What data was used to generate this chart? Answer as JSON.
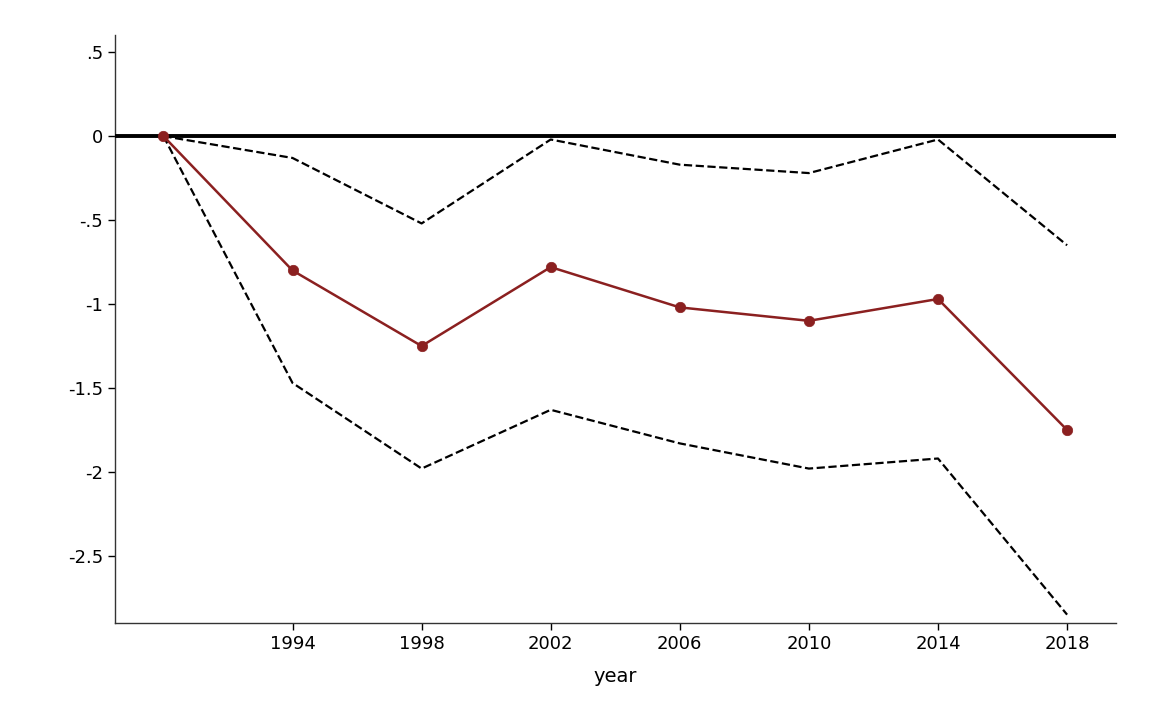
{
  "years": [
    1990,
    1994,
    1998,
    2002,
    2006,
    2010,
    2014,
    2018
  ],
  "main_line": [
    0.0,
    -0.8,
    -1.25,
    -0.78,
    -1.02,
    -1.1,
    -0.97,
    -1.75
  ],
  "upper_ci": [
    0.0,
    -0.13,
    -0.52,
    -0.02,
    -0.17,
    -0.22,
    -0.02,
    -0.65
  ],
  "lower_ci": [
    0.0,
    -1.47,
    -1.98,
    -1.63,
    -1.83,
    -1.98,
    -1.92,
    -2.85
  ],
  "main_color": "#8B2020",
  "ci_color": "#000000",
  "hline_color": "#000000",
  "xlabel": "year",
  "xlim_left": 1988.5,
  "xlim_right": 2019.5,
  "ylim_bottom": -2.9,
  "ylim_top": 0.6,
  "yticks": [
    0.5,
    0.0,
    -0.5,
    -1.0,
    -1.5,
    -2.0,
    -2.5
  ],
  "ytick_labels": [
    ".5",
    "0",
    "-.5",
    "-1",
    "-1.5",
    "-2",
    "-2.5"
  ],
  "xticks": [
    1994,
    1998,
    2002,
    2006,
    2010,
    2014,
    2018
  ],
  "background_color": "#ffffff",
  "fig_background": "#ffffff"
}
